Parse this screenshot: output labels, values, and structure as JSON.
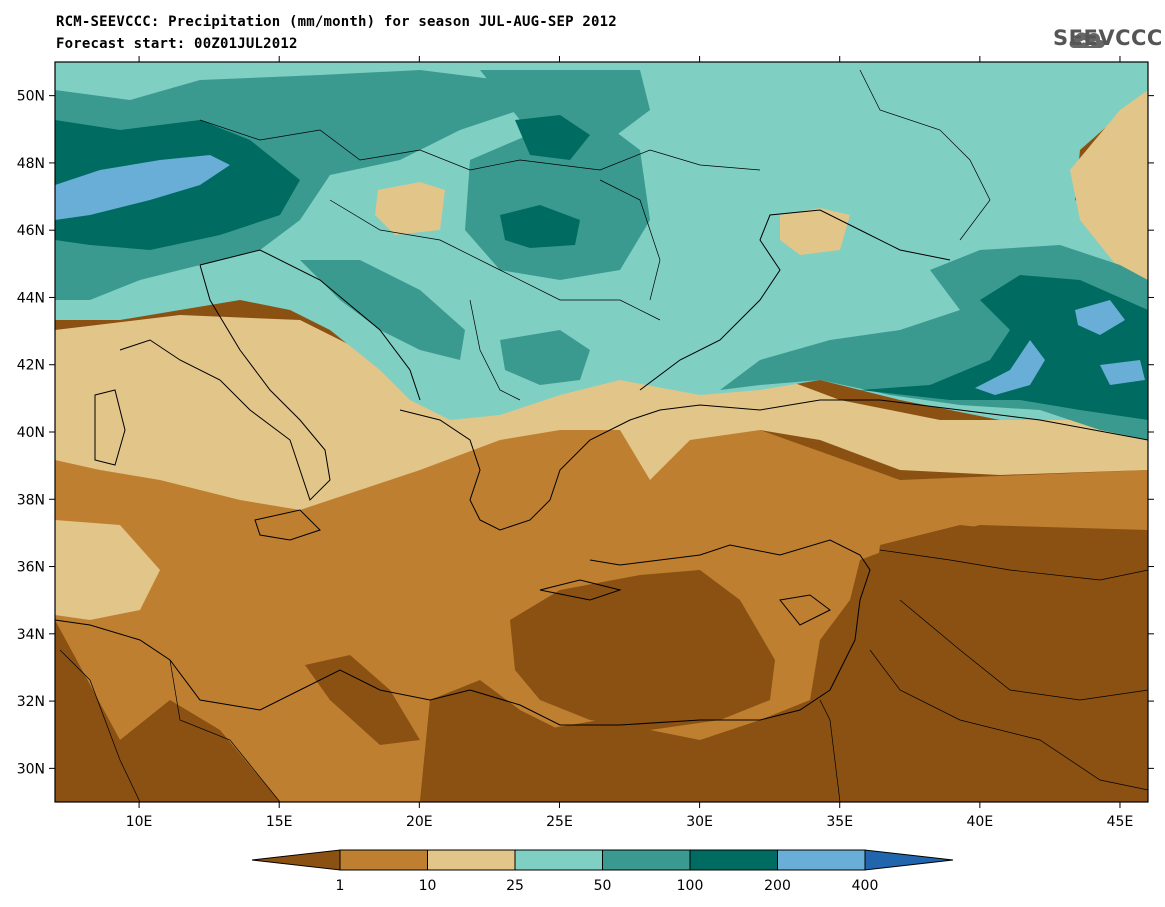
{
  "header": {
    "title_line1": "RCM-SEEVCCC: Precipitation (mm/month) for season JUL-AUG-SEP 2012",
    "title_line2": "Forecast start: 00Z01JUL2012",
    "logo_text": "SEEVCCC"
  },
  "map": {
    "lon_range": [
      7,
      46
    ],
    "lat_range": [
      29,
      51
    ],
    "lat_ticks": [
      "50N",
      "48N",
      "46N",
      "44N",
      "42N",
      "40N",
      "38N",
      "36N",
      "34N",
      "32N",
      "30N"
    ],
    "lat_values": [
      50,
      48,
      46,
      44,
      42,
      40,
      38,
      36,
      34,
      32,
      30
    ],
    "lon_ticks": [
      "10E",
      "15E",
      "20E",
      "25E",
      "30E",
      "35E",
      "40E",
      "45E"
    ],
    "lon_values": [
      10,
      15,
      20,
      25,
      30,
      35,
      40,
      45
    ]
  },
  "legend": {
    "colors": [
      "#8a5112",
      "#be7f30",
      "#e2c589",
      "#80cfc3",
      "#3a9a90",
      "#006b60",
      "#68aed6",
      "#2166ac"
    ],
    "labels": [
      "1",
      "10",
      "25",
      "50",
      "100",
      "200",
      "400"
    ]
  }
}
